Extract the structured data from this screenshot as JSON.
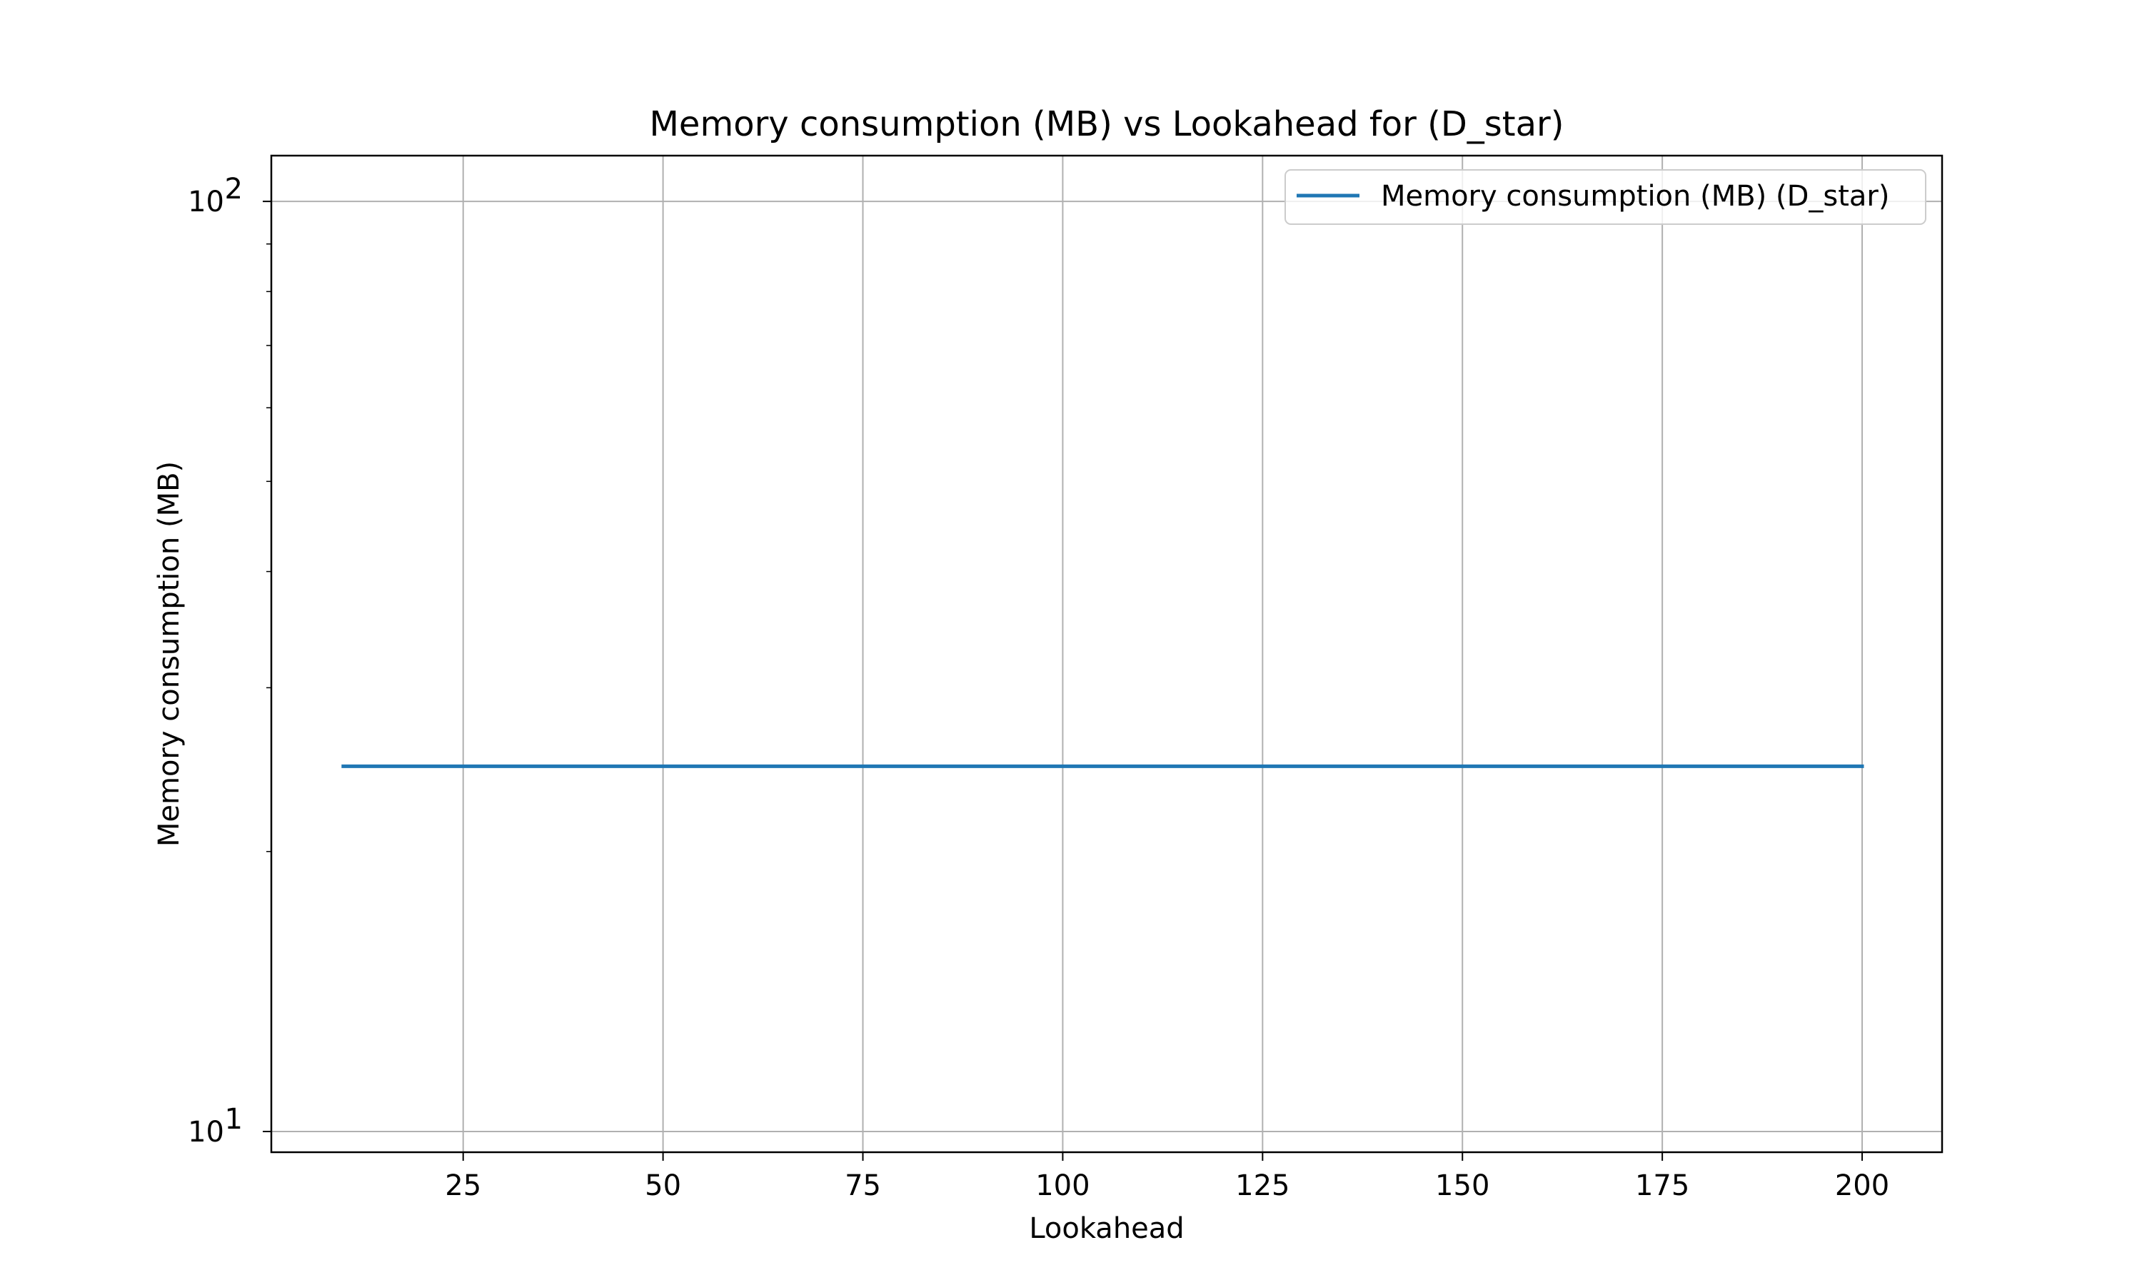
{
  "chart_data": {
    "type": "line",
    "title": "Memory consumption (MB) vs Lookahead for  (D_star)",
    "xlabel": "Lookahead",
    "ylabel": "Memory consumption (MB)",
    "xlim": [
      1,
      210
    ],
    "ylim": [
      9.5,
      112
    ],
    "yscale": "log",
    "xticks": [
      25,
      50,
      75,
      100,
      125,
      150,
      175,
      200
    ],
    "xtick_labels": [
      "25",
      "50",
      "75",
      "100",
      "125",
      "150",
      "175",
      "200"
    ],
    "yticks": [
      {
        "value": 10,
        "base": "10",
        "exponent": "1"
      },
      {
        "value": 100,
        "base": "10",
        "exponent": "2"
      }
    ],
    "grid": true,
    "legend_position": "top-right",
    "series": [
      {
        "name": "Memory consumption (MB) (D_star)",
        "color": "#1f77b4",
        "x": [
          10,
          200
        ],
        "y": [
          24.7,
          24.7
        ]
      }
    ]
  }
}
